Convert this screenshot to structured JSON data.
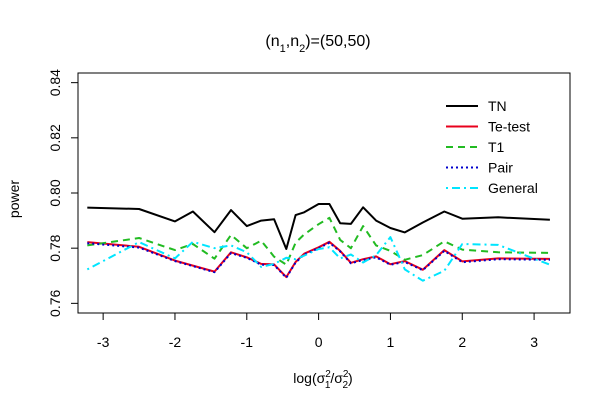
{
  "chart_data": {
    "type": "line",
    "title": {
      "n1": "1",
      "n2": "2",
      "values": "(50,50)"
    },
    "xlabel": {
      "prefix": "log",
      "num": "σ",
      "num_sub": "1",
      "num_sup": "2",
      "den": "σ",
      "den_sub": "2",
      "den_sup": "2"
    },
    "ylabel": "power",
    "xlim": [
      -3.35,
      3.5
    ],
    "ylim": [
      0.7565,
      0.8435
    ],
    "x_ticks": [
      -3,
      -2,
      -1,
      0,
      1,
      2,
      3
    ],
    "x_tick_labels": [
      "-3",
      "-2",
      "-1",
      "0",
      "1",
      "2",
      "3"
    ],
    "y_ticks": [
      0.76,
      0.78,
      0.8,
      0.82,
      0.84
    ],
    "y_tick_labels": [
      "0.76",
      "0.78",
      "0.80",
      "0.82",
      "0.84"
    ],
    "legend_position": "top-right",
    "x": [
      -3.22,
      -2.5,
      -2.0,
      -1.75,
      -1.45,
      -1.22,
      -1.0,
      -0.8,
      -0.62,
      -0.45,
      -0.32,
      -0.2,
      0.0,
      0.15,
      0.3,
      0.45,
      0.62,
      0.8,
      1.0,
      1.2,
      1.45,
      1.75,
      2.0,
      2.5,
      3.22
    ],
    "series": [
      {
        "name": "TN",
        "color": "#000000",
        "dash": "solid",
        "values": [
          0.7947,
          0.7942,
          0.7897,
          0.7933,
          0.7858,
          0.7938,
          0.788,
          0.79,
          0.7905,
          0.7797,
          0.792,
          0.793,
          0.796,
          0.796,
          0.789,
          0.7888,
          0.7948,
          0.79,
          0.7873,
          0.7857,
          0.7893,
          0.7933,
          0.7907,
          0.7912,
          0.7903
        ]
      },
      {
        "name": "Te-test",
        "color": "#e8001c",
        "dash": "solid",
        "values": [
          0.7822,
          0.7805,
          0.7755,
          0.7737,
          0.7715,
          0.7785,
          0.7767,
          0.7743,
          0.7741,
          0.7695,
          0.775,
          0.778,
          0.7803,
          0.7823,
          0.779,
          0.7747,
          0.776,
          0.777,
          0.7742,
          0.7753,
          0.7722,
          0.7793,
          0.7752,
          0.7763,
          0.7761
        ]
      },
      {
        "name": "T1",
        "color": "#22bb22",
        "dash": "dashed",
        "values": [
          0.781,
          0.7837,
          0.7793,
          0.7815,
          0.7762,
          0.7848,
          0.78,
          0.7827,
          0.7769,
          0.774,
          0.782,
          0.785,
          0.7887,
          0.791,
          0.783,
          0.78,
          0.788,
          0.781,
          0.779,
          0.7758,
          0.7775,
          0.7825,
          0.7795,
          0.7785,
          0.7783
        ]
      },
      {
        "name": "Pair",
        "color": "#0000cc",
        "dash": "dotted",
        "values": [
          0.7818,
          0.7802,
          0.7753,
          0.7735,
          0.7713,
          0.7782,
          0.7765,
          0.774,
          0.7739,
          0.7693,
          0.7748,
          0.7777,
          0.78,
          0.782,
          0.7788,
          0.7745,
          0.7757,
          0.7767,
          0.774,
          0.775,
          0.772,
          0.779,
          0.7749,
          0.776,
          0.7758
        ]
      },
      {
        "name": "General",
        "color": "#00e5ff",
        "dash": "dotdash",
        "values": [
          0.7723,
          0.7822,
          0.7763,
          0.7823,
          0.78,
          0.781,
          0.7785,
          0.7732,
          0.7743,
          0.7765,
          0.776,
          0.7773,
          0.7797,
          0.7803,
          0.7763,
          0.7777,
          0.7748,
          0.7775,
          0.784,
          0.7723,
          0.7682,
          0.7718,
          0.7815,
          0.7812,
          0.774
        ]
      }
    ]
  }
}
